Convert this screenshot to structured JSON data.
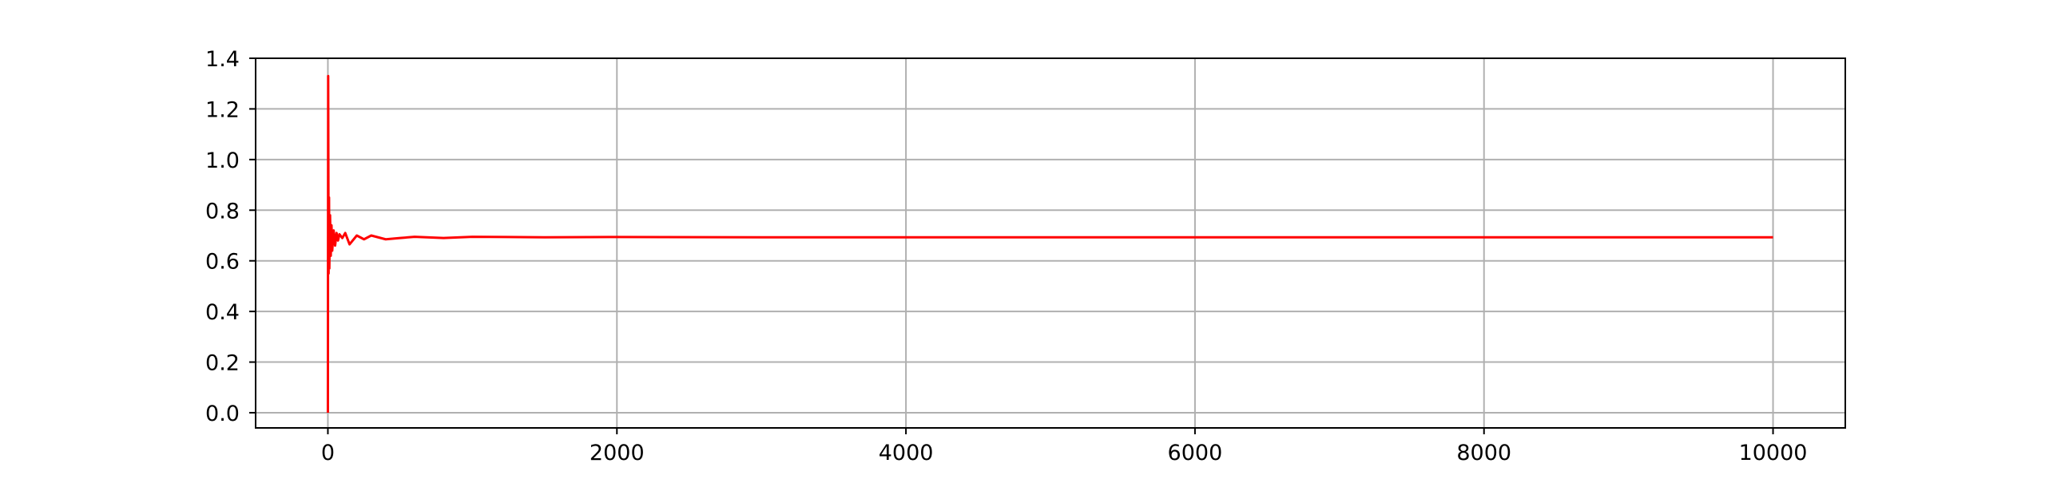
{
  "chart_data": {
    "type": "line",
    "title": "",
    "xlabel": "",
    "ylabel": "",
    "xlim": [
      -500,
      10500
    ],
    "ylim": [
      -0.06,
      1.4
    ],
    "xticks": [
      0,
      2000,
      4000,
      6000,
      8000,
      10000
    ],
    "xtick_labels": [
      "0",
      "2000",
      "4000",
      "6000",
      "8000",
      "10000"
    ],
    "yticks": [
      0.0,
      0.2,
      0.4,
      0.6,
      0.8,
      1.0,
      1.2,
      1.4
    ],
    "ytick_labels": [
      "0.0",
      "0.2",
      "0.4",
      "0.6",
      "0.8",
      "1.0",
      "1.2",
      "1.4"
    ],
    "grid": true,
    "series": [
      {
        "color": "#ff0000",
        "x": [
          0,
          2,
          5,
          8,
          10,
          15,
          20,
          25,
          30,
          40,
          50,
          60,
          70,
          80,
          100,
          120,
          150,
          200,
          250,
          300,
          400,
          500,
          600,
          800,
          1000,
          1500,
          2000,
          3000,
          4000,
          5000,
          6000,
          7000,
          8000,
          9000,
          10000
        ],
        "y": [
          0.0,
          1.33,
          0.55,
          0.85,
          0.57,
          0.78,
          0.62,
          0.74,
          0.64,
          0.72,
          0.66,
          0.71,
          0.68,
          0.705,
          0.69,
          0.71,
          0.665,
          0.7,
          0.685,
          0.7,
          0.685,
          0.69,
          0.695,
          0.69,
          0.695,
          0.693,
          0.694,
          0.693,
          0.693,
          0.693,
          0.693,
          0.693,
          0.693,
          0.693,
          0.693
        ]
      }
    ]
  }
}
